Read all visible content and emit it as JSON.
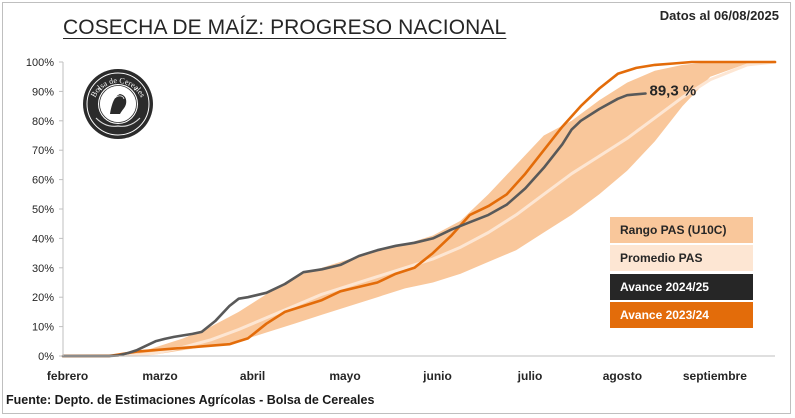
{
  "header": {
    "title": "COSECHA DE MAÍZ: PROGRESO NACIONAL",
    "date_note": "Datos al 06/08/2025"
  },
  "footer": {
    "source": "Fuente: Depto. de Estimaciones Agrícolas - Bolsa de Cereales"
  },
  "logo": {
    "text": "Bolsa de Cereales",
    "icon": "seal-logo-icon"
  },
  "chart_data": {
    "type": "area",
    "title": "COSECHA DE MAÍZ: PROGRESO NACIONAL",
    "xlabel": "",
    "ylabel": "",
    "x_categories": [
      "febrero",
      "marzo",
      "abril",
      "mayo",
      "junio",
      "julio",
      "agosto",
      "septiembre"
    ],
    "xlim": [
      0,
      7.7
    ],
    "ylim": [
      0,
      100
    ],
    "y_ticks": [
      "0%",
      "10%",
      "20%",
      "30%",
      "40%",
      "50%",
      "60%",
      "70%",
      "80%",
      "90%",
      "100%"
    ],
    "grid": false,
    "legend_position": "bottom-right",
    "colors": {
      "range": "#f9c79b",
      "average": "#fde6d3",
      "current": "#595959",
      "previous": "#e36c0a"
    },
    "annotation": "89,3 %",
    "series": [
      {
        "name": "Rango PAS (U10C)",
        "kind": "band",
        "x": [
          0,
          0.5,
          0.8,
          1.0,
          1.3,
          1.6,
          1.9,
          2.2,
          2.5,
          2.8,
          3.1,
          3.4,
          3.7,
          4.0,
          4.3,
          4.6,
          4.9,
          5.2,
          5.5,
          5.8,
          6.1,
          6.4,
          6.7,
          7.0,
          7.4,
          7.7
        ],
        "lower": [
          0,
          0,
          0,
          0.5,
          2,
          3.5,
          5,
          8,
          11,
          14,
          17,
          20,
          23,
          25,
          28,
          32,
          36,
          42,
          48,
          55,
          63,
          73,
          85,
          95,
          99.5,
          100
        ],
        "upper": [
          0,
          0,
          1,
          3,
          6,
          10,
          15,
          21,
          27,
          30,
          33,
          36,
          38,
          41,
          46,
          55,
          65,
          75,
          80,
          87,
          93,
          97,
          99,
          100,
          100,
          100
        ]
      },
      {
        "name": "Promedio PAS",
        "x": [
          0,
          0.8,
          1.0,
          1.3,
          1.6,
          1.9,
          2.2,
          2.5,
          2.8,
          3.1,
          3.4,
          3.7,
          4.0,
          4.3,
          4.6,
          4.9,
          5.2,
          5.5,
          5.8,
          6.1,
          6.4,
          6.7,
          7.0,
          7.4,
          7.7
        ],
        "values": [
          0,
          0.3,
          1,
          3,
          5.5,
          9,
          13,
          17,
          21,
          24,
          27,
          30,
          33,
          37,
          42,
          48,
          55,
          62,
          68,
          74,
          81,
          88,
          94,
          99,
          100
        ]
      },
      {
        "name": "Avance 2024/25",
        "x": [
          0,
          0.5,
          0.6,
          0.7,
          0.8,
          0.9,
          1.0,
          1.1,
          1.2,
          1.3,
          1.4,
          1.5,
          1.65,
          1.8,
          1.9,
          2.0,
          2.2,
          2.4,
          2.6,
          2.8,
          3.0,
          3.2,
          3.4,
          3.6,
          3.8,
          4.0,
          4.2,
          4.4,
          4.6,
          4.8,
          5.0,
          5.2,
          5.4,
          5.5,
          5.6,
          5.8,
          6.0,
          6.1,
          6.2,
          6.3
        ],
        "values": [
          0,
          0,
          0.2,
          1,
          2,
          3.5,
          5,
          5.8,
          6.5,
          7,
          7.5,
          8.2,
          12,
          17,
          19.5,
          20,
          21.5,
          24.5,
          28.5,
          29.5,
          31,
          34,
          36,
          37.5,
          38.5,
          40,
          43,
          45.5,
          48,
          51.5,
          57,
          64,
          72,
          77,
          80,
          84,
          87.5,
          88.7,
          89,
          89.3
        ]
      },
      {
        "name": "Avance 2023/24",
        "x": [
          0,
          0.5,
          0.8,
          1.0,
          1.2,
          1.4,
          1.6,
          1.8,
          1.9,
          2.0,
          2.2,
          2.4,
          2.6,
          2.8,
          3.0,
          3.2,
          3.4,
          3.6,
          3.8,
          4.0,
          4.2,
          4.4,
          4.6,
          4.8,
          5.0,
          5.2,
          5.4,
          5.6,
          5.8,
          6.0,
          6.2,
          6.4,
          6.6,
          6.8,
          7.0,
          7.3,
          7.7
        ],
        "values": [
          0,
          0,
          1.5,
          2,
          2.5,
          3,
          3.5,
          4,
          5,
          6,
          11,
          15,
          17,
          19,
          22,
          23.5,
          25,
          28,
          30,
          35,
          41,
          48,
          51,
          55,
          62,
          70,
          78,
          85,
          91,
          96,
          98,
          99,
          99.5,
          100,
          100,
          100,
          100
        ]
      }
    ]
  }
}
